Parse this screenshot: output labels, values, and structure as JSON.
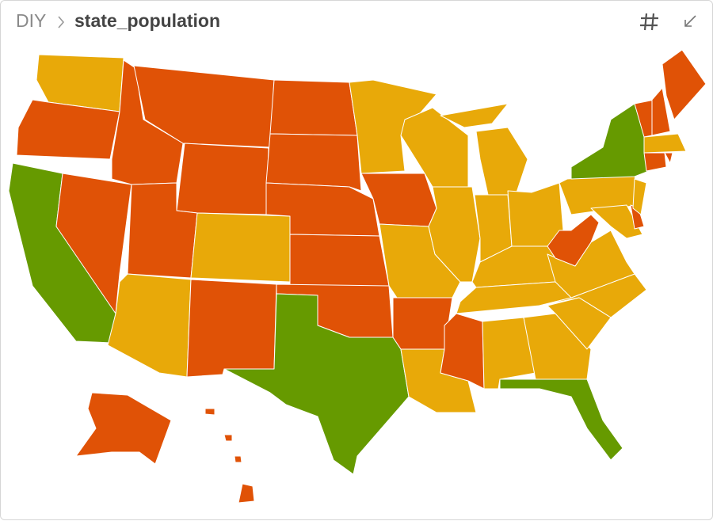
{
  "header": {
    "breadcrumb": "DIY",
    "title": "state_population"
  },
  "map": {
    "palette": [
      "#e05206",
      "#e8a909",
      "#669a00"
    ],
    "border_color": "#ffffff"
  }
}
